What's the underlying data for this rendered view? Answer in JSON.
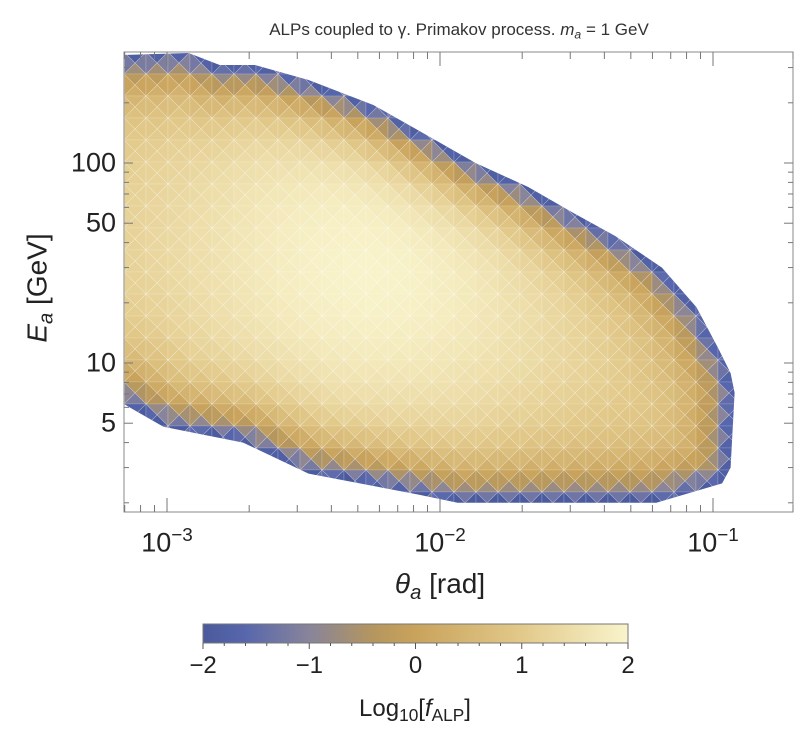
{
  "chart_data": {
    "type": "heatmap",
    "title": {
      "prefix": "ALPs coupled to γ. Primakov process.",
      "mass_symbol": "m",
      "mass_subscript": "a",
      "mass_value": "= 1 GeV"
    },
    "xlabel": {
      "symbol": "θ",
      "subscript": "a",
      "unit": "[rad]"
    },
    "ylabel": {
      "symbol": "E",
      "subscript": "a",
      "unit": "[GeV]"
    },
    "x_scale": "log",
    "y_scale": "log",
    "xlim": [
      0.0007,
      0.2
    ],
    "ylim": [
      1.8,
      360
    ],
    "xticks": [
      {
        "value": 0.001,
        "base": "10",
        "exp": "−3"
      },
      {
        "value": 0.01,
        "base": "10",
        "exp": "−2"
      },
      {
        "value": 0.1,
        "base": "10",
        "exp": "−1"
      }
    ],
    "yticks": [
      {
        "value": 100,
        "label": "100"
      },
      {
        "value": 50,
        "label": "50"
      },
      {
        "value": 10,
        "label": "10"
      },
      {
        "value": 5,
        "label": "5"
      }
    ],
    "grid": false,
    "colorbar": {
      "range": [
        -2,
        2
      ],
      "placement": "bottom",
      "ticks": [
        {
          "value": -2,
          "label": "−2"
        },
        {
          "value": -1,
          "label": "−1"
        },
        {
          "value": 0,
          "label": "0"
        },
        {
          "value": 1,
          "label": "1"
        },
        {
          "value": 2,
          "label": "2"
        }
      ],
      "label": {
        "prefix": "Log",
        "subscript": "10",
        "open": "[",
        "symbol": "f",
        "symbol_subscript": "ALP",
        "close": "]"
      },
      "color_stops": [
        {
          "value": -2,
          "color": "#4a5a9c"
        },
        {
          "value": -1.6,
          "color": "#5867ad"
        },
        {
          "value": -1,
          "color": "#88849a"
        },
        {
          "value": -0.4,
          "color": "#b4965e"
        },
        {
          "value": 0,
          "color": "#c9a35c"
        },
        {
          "value": 1,
          "color": "#e2c98a"
        },
        {
          "value": 2,
          "color": "#f9f4cc"
        }
      ]
    },
    "region_boundary_theta_E": [
      [
        0.0007,
        347
      ],
      [
        0.0012,
        355
      ],
      [
        0.00156,
        309
      ],
      [
        0.0021,
        309
      ],
      [
        0.0033,
        260
      ],
      [
        0.0057,
        195
      ],
      [
        0.0083,
        146
      ],
      [
        0.0135,
        100
      ],
      [
        0.021,
        76
      ],
      [
        0.031,
        56
      ],
      [
        0.044,
        43
      ],
      [
        0.065,
        30
      ],
      [
        0.087,
        19
      ],
      [
        0.104,
        12
      ],
      [
        0.116,
        8.9
      ],
      [
        0.12,
        7.1
      ],
      [
        0.116,
        3.0
      ],
      [
        0.108,
        2.5
      ],
      [
        0.062,
        2.0
      ],
      [
        0.0116,
        2.0
      ],
      [
        0.0083,
        2.2
      ],
      [
        0.0033,
        2.8
      ],
      [
        0.0019,
        4.0
      ],
      [
        0.00097,
        4.8
      ],
      [
        0.0007,
        6.2
      ]
    ],
    "peak": {
      "theta": 0.0057,
      "E": 34,
      "log10_f": 2
    }
  }
}
